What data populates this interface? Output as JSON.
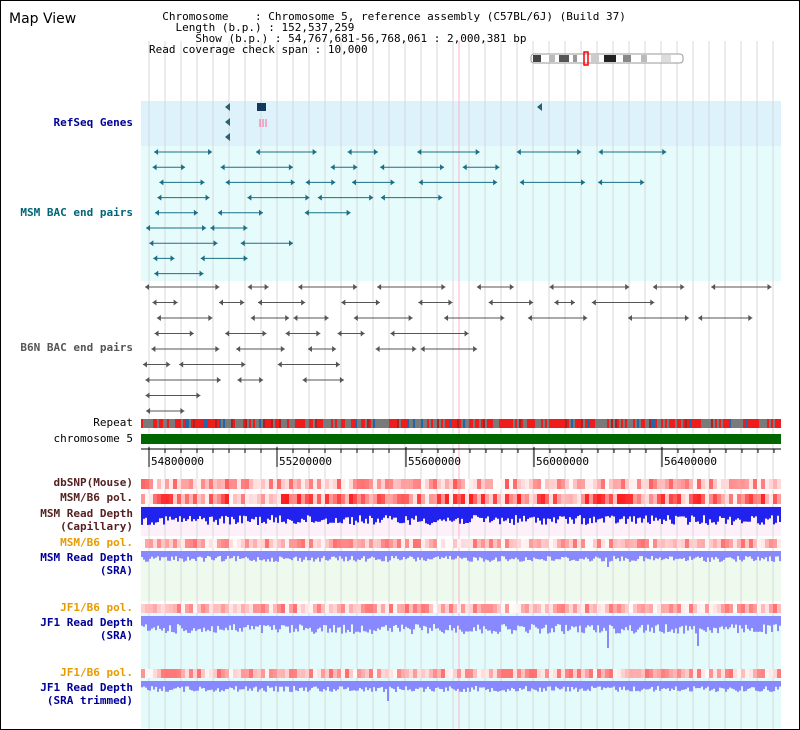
{
  "title": "Map View",
  "info": {
    "chromosome_key": "Chromosome",
    "chromosome_val": "Chromosome 5, reference assembly (C57BL/6J) (Build 37)",
    "length_key": "Length (b.p.)",
    "length_val": "152,537,259",
    "show_key": "Show (b.p.)",
    "show_val": "54,767,681-56,768,061 : 2,000,381 bp",
    "coverage_key": "Read coverage check span",
    "coverage_val": "10,000"
  },
  "tracks": {
    "refseq": "RefSeq Genes",
    "msm_bac": "MSM BAC end pairs",
    "b6n_bac": "B6N BAC end pairs",
    "repeat": "Repeat",
    "chromosome": "chromosome 5",
    "dbsnp": "dbSNP(Mouse)",
    "msm_pol1": "MSM/B6 pol.",
    "msm_cap_1": "MSM Read Depth",
    "msm_cap_2": "(Capillary)",
    "msm_pol2": "MSM/B6 pol.",
    "msm_sra_1": "MSM Read Depth",
    "msm_sra_2": "(SRA)",
    "jf1_pol1": "JF1/B6 pol.",
    "jf1_sra_1": "JF1 Read Depth",
    "jf1_sra_2": "(SRA)",
    "jf1_pol2": "JF1/B6 pol.",
    "jf1_trim_1": "JF1 Read Depth",
    "jf1_trim_2": "(SRA trimmed)"
  },
  "axis": {
    "ticks": [
      "54800000",
      "55200000",
      "55600000",
      "56000000",
      "56400000"
    ]
  },
  "colors": {
    "refseq_bg": "#ddf2fb",
    "bac_line": "#1a6f86",
    "b6n_line": "#555555",
    "chromosome_bar": "#006600",
    "snp": "#ff8080",
    "depth_dark": "#2222ee",
    "depth_light": "#8888ff"
  }
}
